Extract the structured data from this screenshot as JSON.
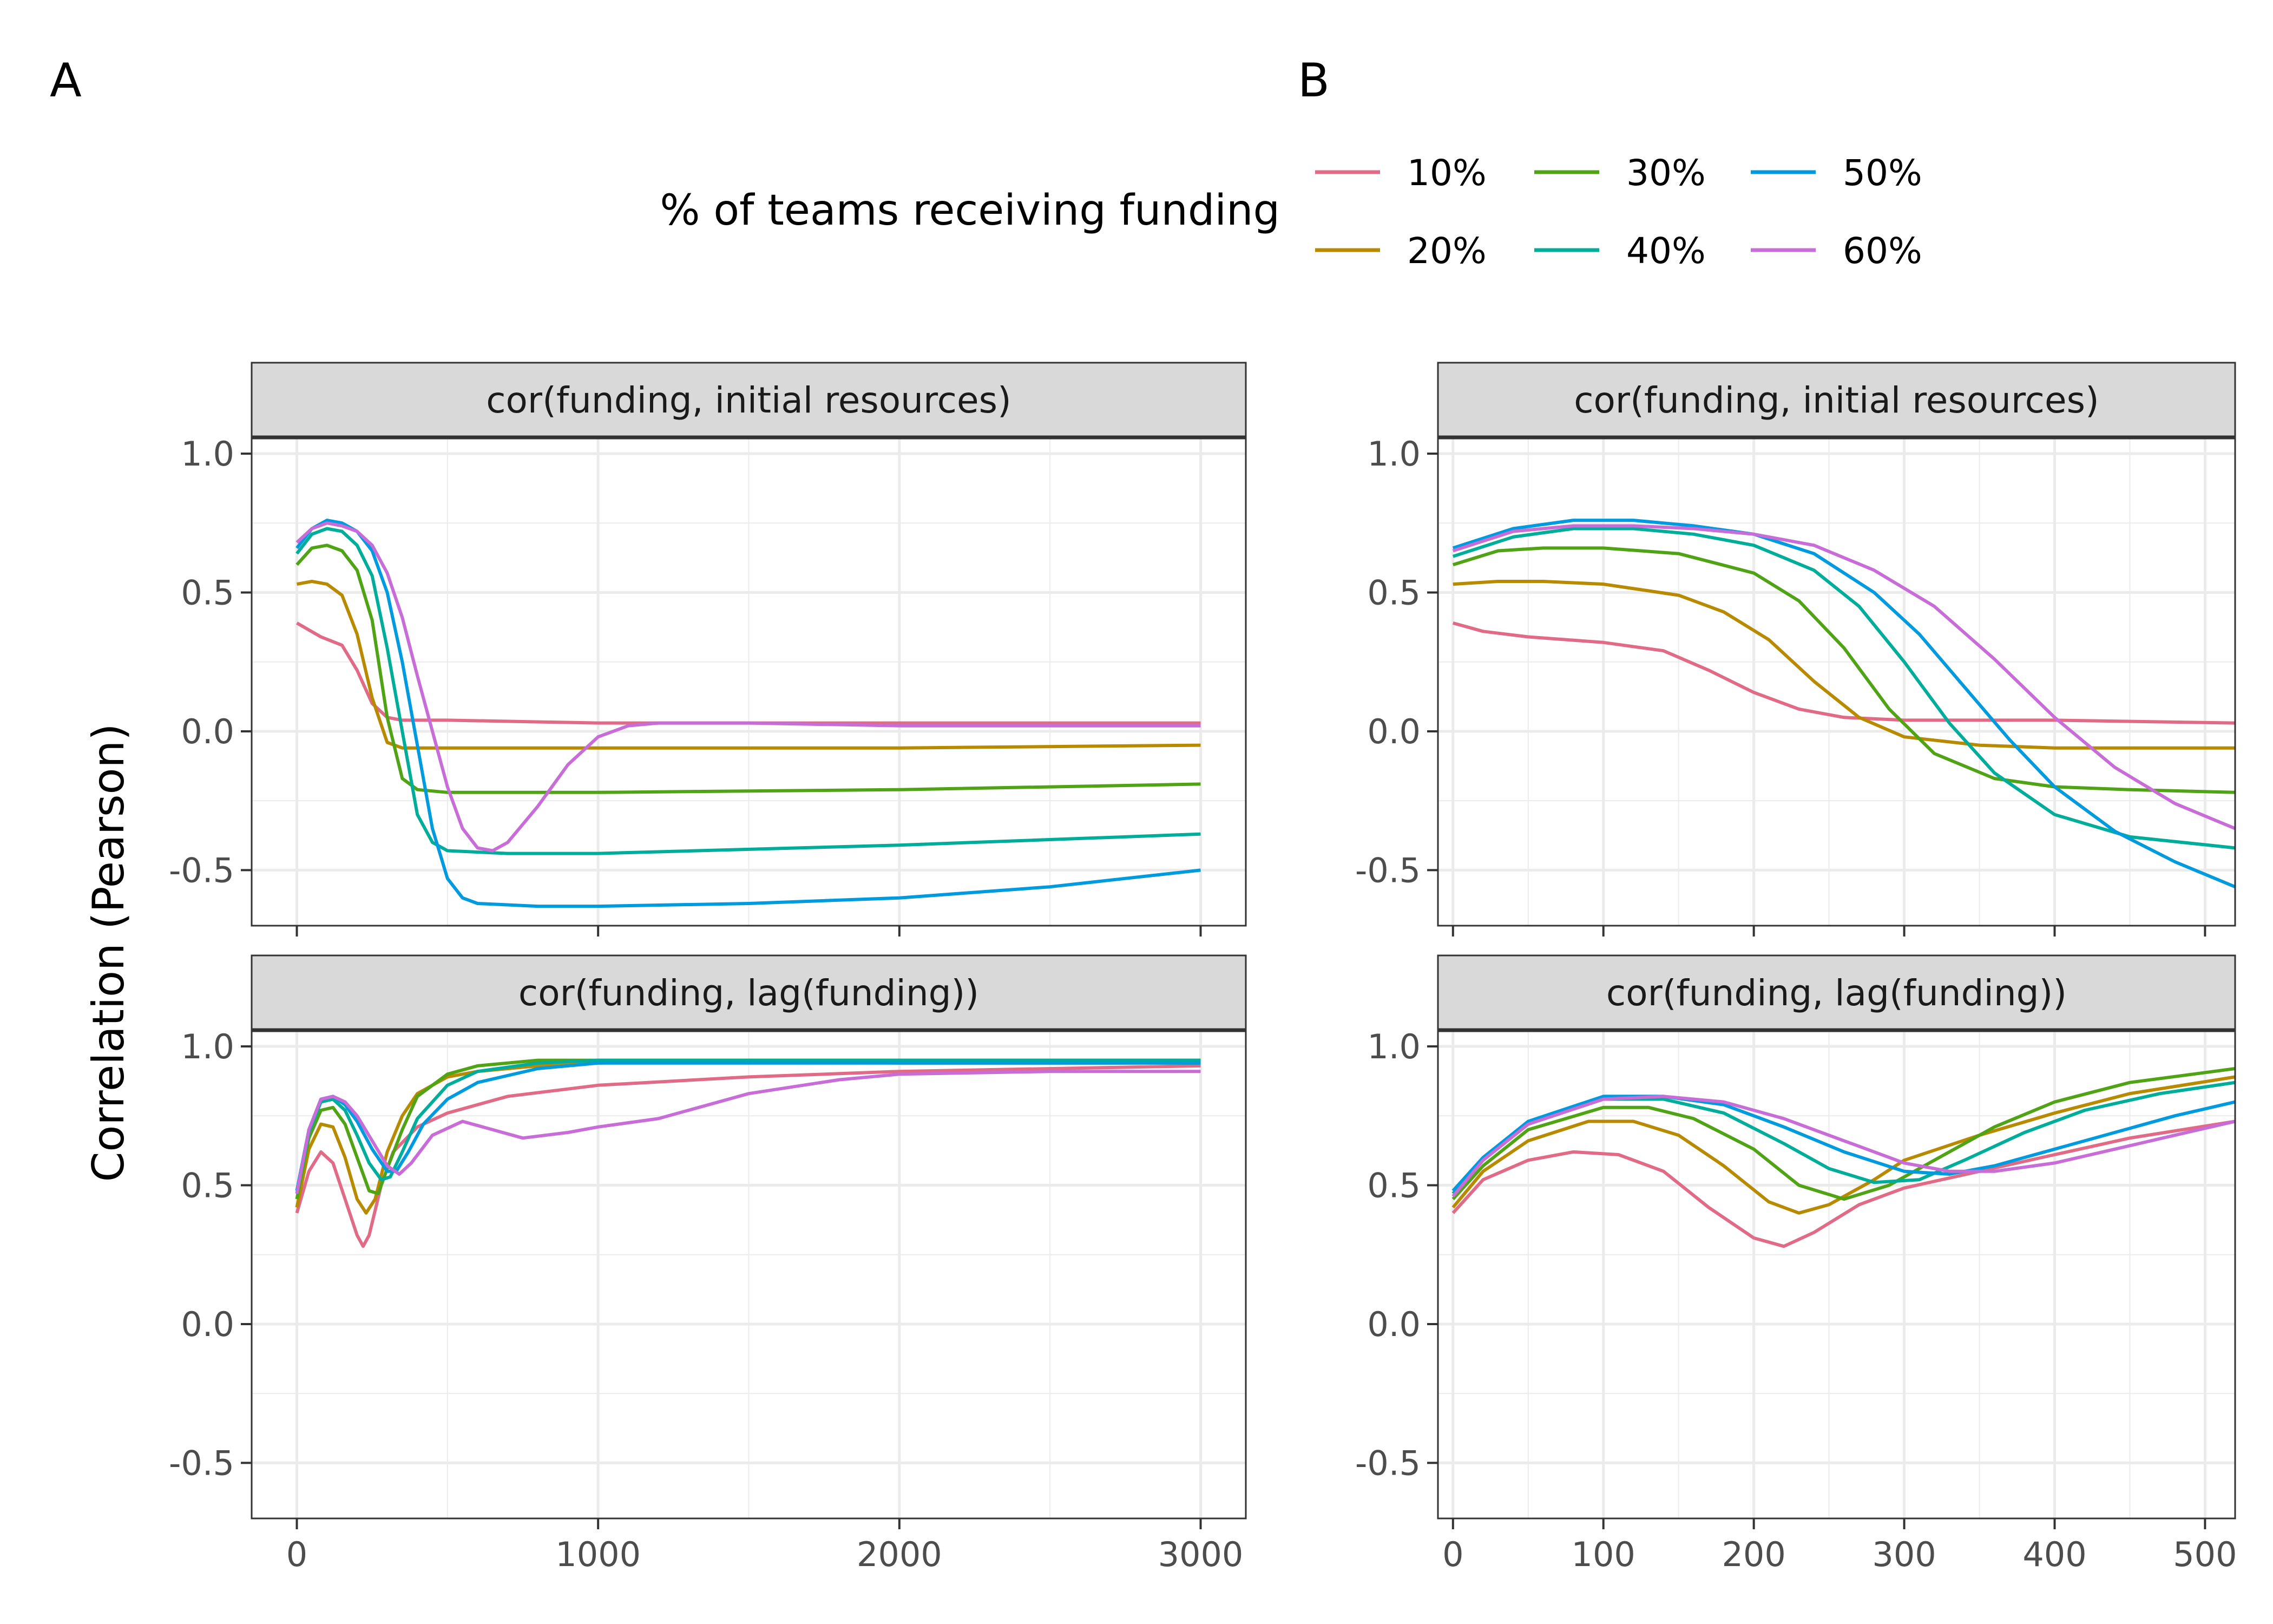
{
  "panel_letters": [
    "A",
    "B"
  ],
  "legend": {
    "title": "% of teams receiving funding",
    "items": [
      {
        "label": "10%",
        "color": "#E16A86"
      },
      {
        "label": "20%",
        "color": "#B88A00"
      },
      {
        "label": "30%",
        "color": "#50A315"
      },
      {
        "label": "40%",
        "color": "#00AD9A"
      },
      {
        "label": "50%",
        "color": "#009ADE"
      },
      {
        "label": "60%",
        "color": "#C86DD7"
      }
    ]
  },
  "y_axis_title": "Correlation (Pearson)",
  "chart_data": [
    {
      "type": "line",
      "panel": "A",
      "facet": "cor(funding, initial resources)",
      "xlim": [
        -150,
        3150
      ],
      "ylim": [
        -0.7,
        1.0
      ],
      "x_ticks": [
        0,
        1000,
        2000,
        3000
      ],
      "y_ticks": [
        1.0,
        0.5,
        0.0,
        -0.5
      ],
      "y_tick_labels": [
        "1.0",
        "0.5",
        "0.0",
        "-0.5"
      ],
      "series": [
        {
          "name": "10%",
          "x": [
            0,
            80,
            150,
            200,
            250,
            300,
            350,
            500,
            1000,
            2000,
            3000
          ],
          "y": [
            0.39,
            0.34,
            0.31,
            0.22,
            0.1,
            0.05,
            0.04,
            0.04,
            0.03,
            0.03,
            0.03
          ]
        },
        {
          "name": "20%",
          "x": [
            0,
            50,
            100,
            150,
            200,
            250,
            300,
            350,
            500,
            1000,
            2000,
            3000
          ],
          "y": [
            0.53,
            0.54,
            0.53,
            0.49,
            0.35,
            0.12,
            -0.04,
            -0.06,
            -0.06,
            -0.06,
            -0.06,
            -0.05
          ]
        },
        {
          "name": "30%",
          "x": [
            0,
            50,
            100,
            150,
            200,
            250,
            300,
            350,
            400,
            500,
            1000,
            2000,
            3000
          ],
          "y": [
            0.6,
            0.66,
            0.67,
            0.65,
            0.58,
            0.4,
            0.05,
            -0.17,
            -0.21,
            -0.22,
            -0.22,
            -0.21,
            -0.19
          ]
        },
        {
          "name": "40%",
          "x": [
            0,
            50,
            100,
            150,
            200,
            250,
            300,
            350,
            400,
            450,
            500,
            700,
            1000,
            2000,
            3000
          ],
          "y": [
            0.64,
            0.71,
            0.73,
            0.72,
            0.67,
            0.56,
            0.3,
            0.0,
            -0.3,
            -0.4,
            -0.43,
            -0.44,
            -0.44,
            -0.41,
            -0.37
          ]
        },
        {
          "name": "50%",
          "x": [
            0,
            50,
            100,
            150,
            200,
            250,
            300,
            350,
            400,
            450,
            500,
            550,
            600,
            800,
            1000,
            1500,
            2000,
            2500,
            3000
          ],
          "y": [
            0.66,
            0.73,
            0.76,
            0.75,
            0.72,
            0.65,
            0.5,
            0.25,
            -0.05,
            -0.35,
            -0.53,
            -0.6,
            -0.62,
            -0.63,
            -0.63,
            -0.62,
            -0.6,
            -0.56,
            -0.5
          ]
        },
        {
          "name": "60%",
          "x": [
            0,
            50,
            100,
            150,
            200,
            250,
            300,
            350,
            400,
            450,
            500,
            550,
            600,
            650,
            700,
            800,
            900,
            1000,
            1100,
            1200,
            1500,
            2000,
            3000
          ],
          "y": [
            0.68,
            0.73,
            0.75,
            0.74,
            0.72,
            0.67,
            0.57,
            0.41,
            0.2,
            0.0,
            -0.2,
            -0.35,
            -0.42,
            -0.43,
            -0.4,
            -0.27,
            -0.12,
            -0.02,
            0.02,
            0.03,
            0.03,
            0.02,
            0.02
          ]
        }
      ]
    },
    {
      "type": "line",
      "panel": "A",
      "facet": "cor(funding, lag(funding))",
      "xlim": [
        -150,
        3150
      ],
      "ylim": [
        -0.7,
        1.0
      ],
      "x_ticks": [
        0,
        1000,
        2000,
        3000
      ],
      "x_tick_labels": [
        "0",
        "1000",
        "2000",
        "3000"
      ],
      "y_ticks": [
        1.0,
        0.5,
        0.0,
        -0.5
      ],
      "y_tick_labels": [
        "1.0",
        "0.5",
        "0.0",
        "-0.5"
      ],
      "series": [
        {
          "name": "10%",
          "x": [
            0,
            40,
            80,
            120,
            160,
            200,
            220,
            240,
            280,
            320,
            400,
            500,
            700,
            1000,
            1500,
            2000,
            3000
          ],
          "y": [
            0.4,
            0.55,
            0.62,
            0.58,
            0.45,
            0.32,
            0.28,
            0.32,
            0.5,
            0.62,
            0.71,
            0.76,
            0.82,
            0.86,
            0.89,
            0.91,
            0.93
          ]
        },
        {
          "name": "20%",
          "x": [
            0,
            40,
            80,
            120,
            160,
            200,
            230,
            260,
            300,
            350,
            400,
            500,
            600,
            800,
            1000,
            1500,
            2000,
            3000
          ],
          "y": [
            0.42,
            0.63,
            0.72,
            0.71,
            0.6,
            0.45,
            0.4,
            0.45,
            0.62,
            0.75,
            0.83,
            0.89,
            0.91,
            0.93,
            0.94,
            0.95,
            0.94,
            0.94
          ]
        },
        {
          "name": "30%",
          "x": [
            0,
            40,
            80,
            120,
            160,
            200,
            240,
            270,
            300,
            350,
            400,
            500,
            600,
            800,
            1000,
            2000,
            3000
          ],
          "y": [
            0.45,
            0.67,
            0.77,
            0.78,
            0.72,
            0.6,
            0.48,
            0.47,
            0.56,
            0.7,
            0.82,
            0.9,
            0.93,
            0.95,
            0.95,
            0.95,
            0.95
          ]
        },
        {
          "name": "40%",
          "x": [
            0,
            40,
            80,
            120,
            160,
            200,
            240,
            280,
            310,
            350,
            400,
            500,
            600,
            800,
            1000,
            2000,
            3000
          ],
          "y": [
            0.47,
            0.69,
            0.8,
            0.81,
            0.77,
            0.68,
            0.58,
            0.52,
            0.53,
            0.62,
            0.74,
            0.86,
            0.91,
            0.94,
            0.95,
            0.95,
            0.95
          ]
        },
        {
          "name": "50%",
          "x": [
            0,
            40,
            80,
            120,
            160,
            200,
            250,
            300,
            330,
            370,
            420,
            500,
            600,
            800,
            1000,
            2000,
            3000
          ],
          "y": [
            0.48,
            0.7,
            0.81,
            0.82,
            0.79,
            0.73,
            0.63,
            0.55,
            0.55,
            0.62,
            0.72,
            0.81,
            0.87,
            0.92,
            0.94,
            0.94,
            0.94
          ]
        },
        {
          "name": "60%",
          "x": [
            0,
            40,
            80,
            120,
            160,
            200,
            250,
            300,
            340,
            380,
            450,
            550,
            650,
            750,
            900,
            1000,
            1200,
            1500,
            1800,
            2000,
            2500,
            3000
          ],
          "y": [
            0.47,
            0.7,
            0.81,
            0.82,
            0.8,
            0.75,
            0.66,
            0.57,
            0.54,
            0.58,
            0.68,
            0.73,
            0.7,
            0.67,
            0.69,
            0.71,
            0.74,
            0.83,
            0.88,
            0.9,
            0.91,
            0.91
          ]
        }
      ]
    },
    {
      "type": "line",
      "panel": "B",
      "facet": "cor(funding, initial resources)",
      "xlim": [
        -10,
        520
      ],
      "ylim": [
        -0.7,
        1.0
      ],
      "x_ticks": [
        0,
        100,
        200,
        300,
        400,
        500
      ],
      "y_ticks": [
        1.0,
        0.5,
        0.0,
        -0.5
      ],
      "y_tick_labels": [
        "1.0",
        "0.5",
        "0.0",
        "-0.5"
      ],
      "series": [
        {
          "name": "10%",
          "x": [
            0,
            20,
            50,
            100,
            140,
            170,
            200,
            230,
            260,
            300,
            400,
            520
          ],
          "y": [
            0.39,
            0.36,
            0.34,
            0.32,
            0.29,
            0.22,
            0.14,
            0.08,
            0.05,
            0.04,
            0.04,
            0.03
          ]
        },
        {
          "name": "20%",
          "x": [
            0,
            30,
            60,
            100,
            150,
            180,
            210,
            240,
            270,
            300,
            350,
            400,
            520
          ],
          "y": [
            0.53,
            0.54,
            0.54,
            0.53,
            0.49,
            0.43,
            0.33,
            0.18,
            0.05,
            -0.02,
            -0.05,
            -0.06,
            -0.06
          ]
        },
        {
          "name": "30%",
          "x": [
            0,
            30,
            60,
            100,
            150,
            200,
            230,
            260,
            290,
            320,
            360,
            400,
            450,
            520
          ],
          "y": [
            0.6,
            0.65,
            0.66,
            0.66,
            0.64,
            0.57,
            0.47,
            0.3,
            0.08,
            -0.08,
            -0.17,
            -0.2,
            -0.21,
            -0.22
          ]
        },
        {
          "name": "40%",
          "x": [
            0,
            40,
            80,
            120,
            160,
            200,
            240,
            270,
            300,
            330,
            360,
            400,
            450,
            520
          ],
          "y": [
            0.63,
            0.7,
            0.73,
            0.73,
            0.71,
            0.67,
            0.58,
            0.45,
            0.25,
            0.03,
            -0.15,
            -0.3,
            -0.38,
            -0.42
          ]
        },
        {
          "name": "50%",
          "x": [
            0,
            40,
            80,
            120,
            160,
            200,
            240,
            280,
            310,
            340,
            370,
            400,
            440,
            480,
            520
          ],
          "y": [
            0.66,
            0.73,
            0.76,
            0.76,
            0.74,
            0.71,
            0.64,
            0.5,
            0.35,
            0.16,
            -0.03,
            -0.2,
            -0.36,
            -0.47,
            -0.56
          ]
        },
        {
          "name": "60%",
          "x": [
            0,
            40,
            80,
            120,
            160,
            200,
            240,
            280,
            320,
            360,
            400,
            440,
            480,
            520
          ],
          "y": [
            0.65,
            0.72,
            0.74,
            0.74,
            0.73,
            0.71,
            0.67,
            0.58,
            0.45,
            0.26,
            0.05,
            -0.13,
            -0.26,
            -0.35
          ]
        }
      ]
    },
    {
      "type": "line",
      "panel": "B",
      "facet": "cor(funding, lag(funding))",
      "xlim": [
        -10,
        520
      ],
      "ylim": [
        -0.7,
        1.0
      ],
      "x_ticks": [
        0,
        100,
        200,
        300,
        400,
        500
      ],
      "x_tick_labels": [
        "0",
        "100",
        "200",
        "300",
        "400",
        "500"
      ],
      "y_ticks": [
        1.0,
        0.5,
        0.0,
        -0.5
      ],
      "y_tick_labels": [
        "1.0",
        "0.5",
        "0.0",
        "-0.5"
      ],
      "series": [
        {
          "name": "10%",
          "x": [
            0,
            20,
            50,
            80,
            110,
            140,
            170,
            200,
            220,
            240,
            270,
            300,
            350,
            400,
            450,
            520
          ],
          "y": [
            0.4,
            0.52,
            0.59,
            0.62,
            0.61,
            0.55,
            0.42,
            0.31,
            0.28,
            0.33,
            0.43,
            0.49,
            0.55,
            0.61,
            0.67,
            0.73
          ]
        },
        {
          "name": "20%",
          "x": [
            0,
            20,
            50,
            90,
            120,
            150,
            180,
            210,
            230,
            250,
            280,
            300,
            350,
            400,
            450,
            520
          ],
          "y": [
            0.42,
            0.55,
            0.66,
            0.73,
            0.73,
            0.68,
            0.57,
            0.44,
            0.4,
            0.43,
            0.52,
            0.59,
            0.68,
            0.76,
            0.83,
            0.89
          ]
        },
        {
          "name": "30%",
          "x": [
            0,
            20,
            50,
            100,
            130,
            160,
            200,
            230,
            260,
            290,
            320,
            360,
            400,
            450,
            520
          ],
          "y": [
            0.45,
            0.57,
            0.7,
            0.78,
            0.78,
            0.74,
            0.63,
            0.5,
            0.45,
            0.5,
            0.59,
            0.71,
            0.8,
            0.87,
            0.92
          ]
        },
        {
          "name": "40%",
          "x": [
            0,
            20,
            50,
            100,
            140,
            180,
            220,
            250,
            280,
            310,
            340,
            380,
            420,
            470,
            520
          ],
          "y": [
            0.47,
            0.59,
            0.72,
            0.81,
            0.81,
            0.76,
            0.65,
            0.56,
            0.51,
            0.52,
            0.59,
            0.69,
            0.77,
            0.83,
            0.87
          ]
        },
        {
          "name": "50%",
          "x": [
            0,
            20,
            50,
            100,
            140,
            180,
            220,
            260,
            300,
            330,
            360,
            400,
            440,
            480,
            520
          ],
          "y": [
            0.48,
            0.6,
            0.73,
            0.82,
            0.82,
            0.79,
            0.71,
            0.62,
            0.55,
            0.54,
            0.57,
            0.63,
            0.69,
            0.75,
            0.8
          ]
        },
        {
          "name": "60%",
          "x": [
            0,
            20,
            50,
            100,
            140,
            180,
            220,
            260,
            300,
            330,
            360,
            400,
            440,
            480,
            520
          ],
          "y": [
            0.46,
            0.59,
            0.72,
            0.81,
            0.82,
            0.8,
            0.74,
            0.66,
            0.58,
            0.55,
            0.55,
            0.58,
            0.63,
            0.68,
            0.73
          ]
        }
      ]
    }
  ]
}
